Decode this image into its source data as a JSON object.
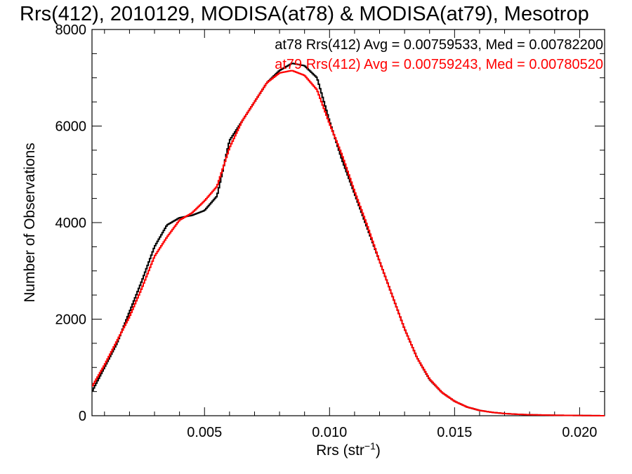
{
  "chart_data": {
    "type": "line",
    "title": "Rrs(412), 2010129, MODISA(at78) & MODISA(at79), Mesotrop",
    "xlabel": "Rrs (str",
    "xlabel_sup": "−1",
    "xlabel_suffix": ")",
    "ylabel": "Number of Observations",
    "xlim": [
      0.0005,
      0.021
    ],
    "ylim": [
      0,
      8000
    ],
    "x_ticks": [
      0.005,
      0.01,
      0.015,
      0.02
    ],
    "x_tick_labels": [
      "0.005",
      "0.010",
      "0.015",
      "0.020"
    ],
    "y_ticks": [
      0,
      2000,
      4000,
      6000,
      8000
    ],
    "y_tick_labels": [
      "0",
      "2000",
      "4000",
      "6000",
      "8000"
    ],
    "grid": false,
    "legend_position": "top-right",
    "series": [
      {
        "name": "at78",
        "legend_text": "at78 Rrs(412) Avg = 0.00759533, Med = 0.00782200",
        "color": "#000000",
        "x": [
          0.0005,
          0.001,
          0.0015,
          0.002,
          0.0025,
          0.003,
          0.0035,
          0.004,
          0.0045,
          0.005,
          0.0055,
          0.006,
          0.0065,
          0.007,
          0.0075,
          0.008,
          0.0085,
          0.009,
          0.0095,
          0.01,
          0.0105,
          0.011,
          0.0115,
          0.012,
          0.0125,
          0.013,
          0.0135,
          0.014,
          0.0145,
          0.015,
          0.0155,
          0.016,
          0.0165,
          0.017,
          0.0175,
          0.018,
          0.019,
          0.02,
          0.021
        ],
        "y": [
          500,
          1000,
          1500,
          2150,
          2800,
          3500,
          3950,
          4100,
          4150,
          4250,
          4550,
          5700,
          6100,
          6500,
          6900,
          7150,
          7300,
          7250,
          7000,
          6100,
          5300,
          4600,
          3900,
          3200,
          2500,
          1800,
          1200,
          750,
          480,
          300,
          180,
          110,
          70,
          45,
          30,
          20,
          10,
          5,
          0
        ]
      },
      {
        "name": "at79",
        "legend_text": "at79 Rrs(412) Avg = 0.00759243, Med = 0.00780520",
        "color": "#ff0000",
        "x": [
          0.0005,
          0.001,
          0.0015,
          0.002,
          0.0025,
          0.003,
          0.0035,
          0.004,
          0.0045,
          0.005,
          0.0055,
          0.006,
          0.0065,
          0.007,
          0.0075,
          0.008,
          0.0085,
          0.009,
          0.0095,
          0.01,
          0.0105,
          0.011,
          0.0115,
          0.012,
          0.0125,
          0.013,
          0.0135,
          0.014,
          0.0145,
          0.015,
          0.0155,
          0.016,
          0.0165,
          0.017,
          0.0175,
          0.018,
          0.019,
          0.02,
          0.021
        ],
        "y": [
          600,
          1050,
          1550,
          2050,
          2650,
          3300,
          3700,
          4050,
          4200,
          4450,
          4750,
          5550,
          6100,
          6500,
          6900,
          7100,
          7150,
          7050,
          6750,
          6050,
          5400,
          4650,
          3950,
          3200,
          2500,
          1800,
          1200,
          760,
          480,
          300,
          180,
          110,
          70,
          45,
          30,
          20,
          10,
          5,
          0
        ]
      }
    ]
  }
}
